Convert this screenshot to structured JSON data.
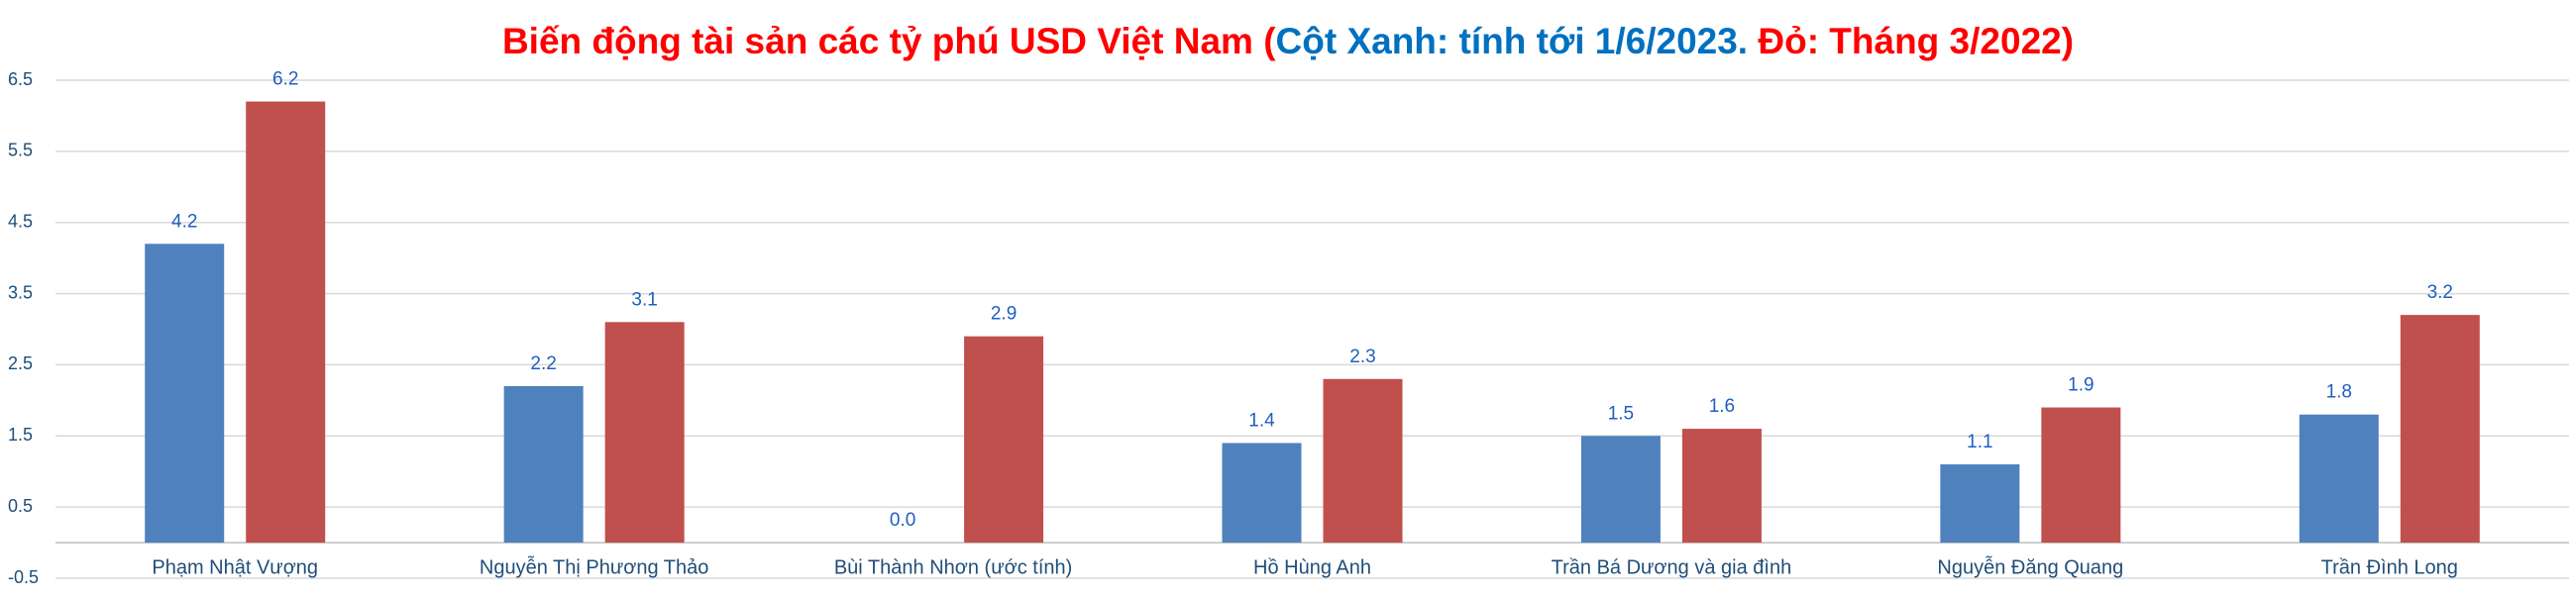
{
  "chart_data": {
    "type": "bar",
    "title_parts": [
      "Biến động tài sản các tỷ phú USD Việt Nam (",
      "Cột Xanh: tính tới 1/6/2023.",
      " Đỏ: Tháng 3/2022)"
    ],
    "title_colors": [
      "#ff0000",
      "#0070c0",
      "#ff0000"
    ],
    "categories": [
      "Phạm Nhật Vượng",
      "Nguyễn Thị Phương Thảo",
      "Bùi Thành Nhơn (ước tính)",
      "Hồ Hùng Anh",
      "Trần Bá Dương và gia đình",
      "Nguyễn Đăng Quang",
      "Trần Đình Long"
    ],
    "series": [
      {
        "color": "#4f81bd",
        "values": [
          4.2,
          2.2,
          0,
          1.4,
          1.5,
          1.1,
          1.8
        ],
        "value_labels": [
          "4.2",
          "2.2",
          "0.0",
          "1.4",
          "1.5",
          "1.1",
          "1.8"
        ]
      },
      {
        "color": "#c0504d",
        "values": [
          6.2,
          3.1,
          2.9,
          2.3,
          1.6,
          1.9,
          3.2
        ]
      }
    ],
    "ylim": [
      -0.5,
      6.5
    ],
    "yticks": [
      -0.5,
      0.5,
      1.5,
      2.5,
      3.5,
      4.5,
      5.5,
      6.5
    ],
    "grid": true
  }
}
